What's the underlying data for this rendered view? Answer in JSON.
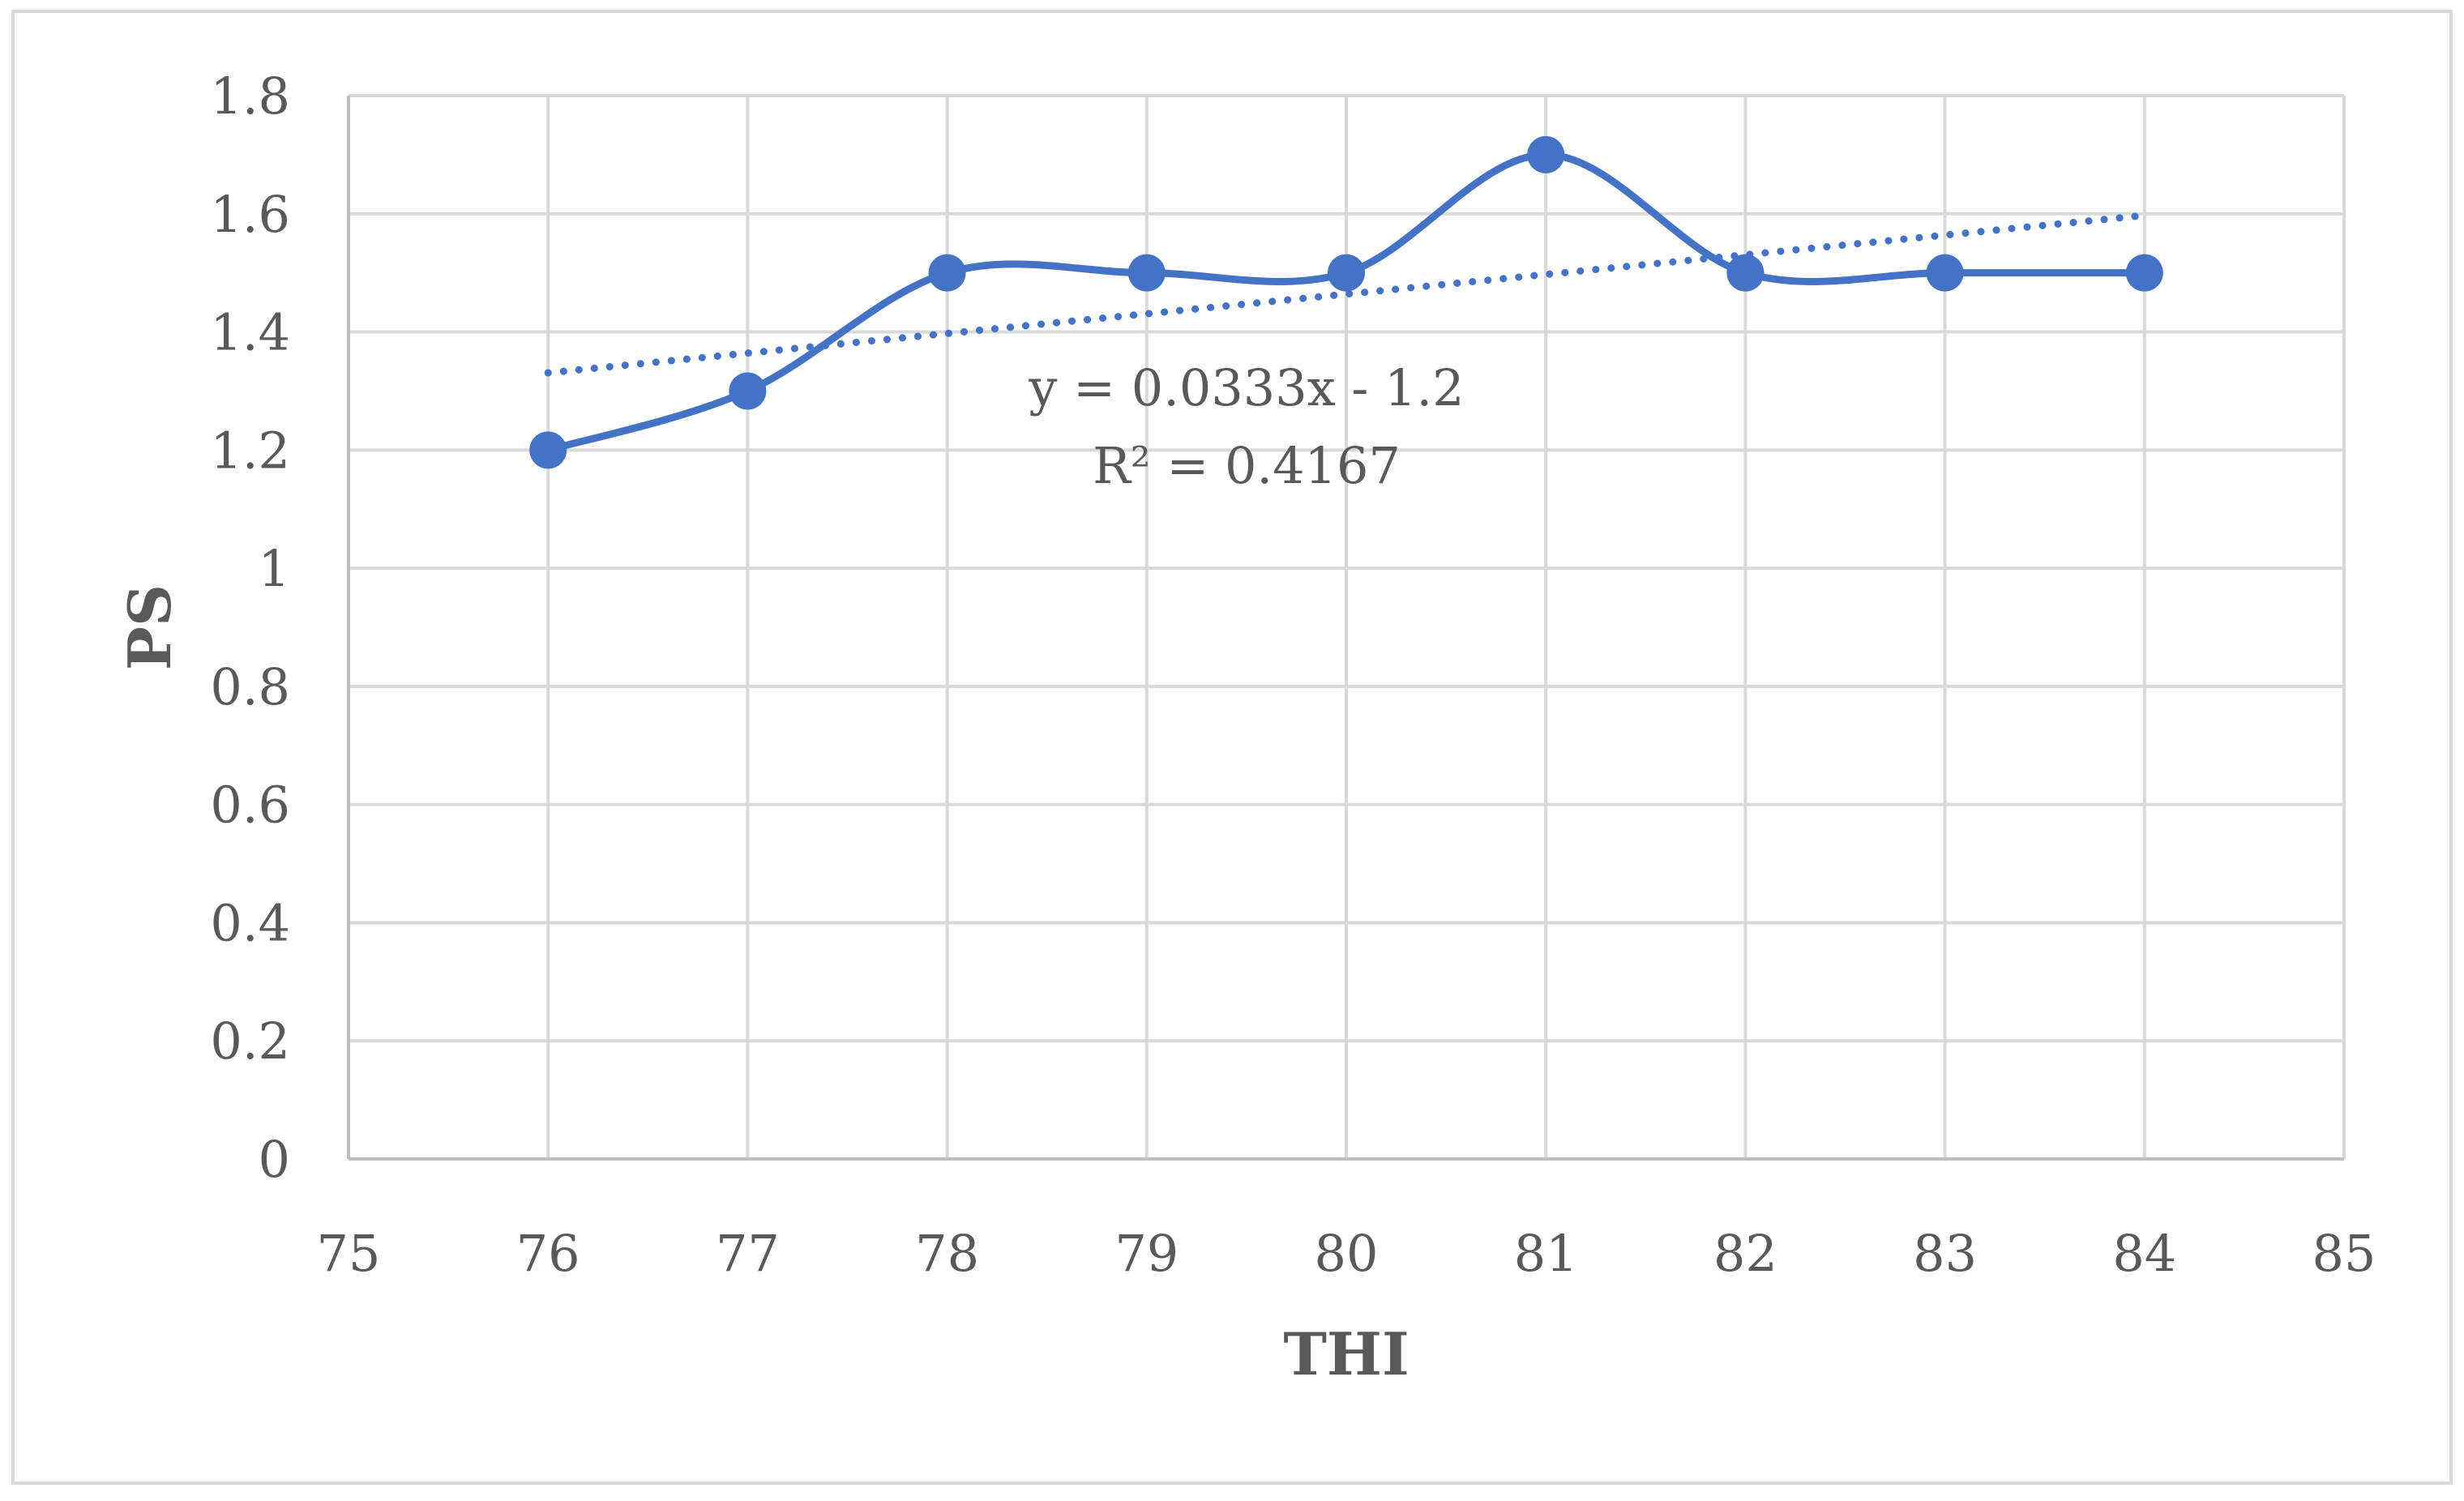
{
  "chart_data": {
    "type": "scatter",
    "title": "",
    "xlabel": "THI",
    "ylabel": "PS",
    "xlim": [
      75,
      85
    ],
    "ylim": [
      0,
      1.8
    ],
    "x_ticks": [
      "75",
      "76",
      "77",
      "78",
      "79",
      "80",
      "81",
      "82",
      "83",
      "84",
      "85"
    ],
    "y_ticks": [
      "0",
      "0.2",
      "0.4",
      "0.6",
      "0.8",
      "1",
      "1.2",
      "1.4",
      "1.6",
      "1.8"
    ],
    "grid": true,
    "legend": "none",
    "series": [
      {
        "x": [
          76,
          77,
          78,
          79,
          80,
          81,
          82,
          83,
          84
        ],
        "y": [
          1.2,
          1.3,
          1.5,
          1.5,
          1.5,
          1.7,
          1.5,
          1.5,
          1.5
        ],
        "style": "smoothed line with markers",
        "color": "#4472C4"
      }
    ],
    "trendline": {
      "type": "linear",
      "slope": 0.0333,
      "intercept": -1.2,
      "x_range": [
        76,
        84
      ],
      "style": "dotted",
      "color": "#4472C4"
    },
    "annotations": [
      "y = 0.0333x - 1.2",
      "R² = 0.4167"
    ]
  }
}
